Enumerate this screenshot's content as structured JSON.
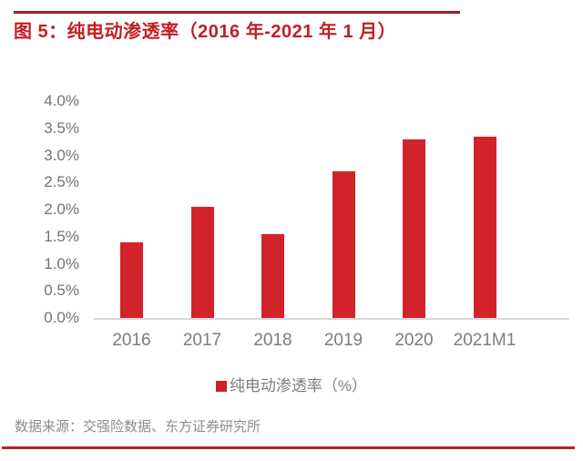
{
  "header": {
    "title": "图 5：纯电动渗透率（2016 年-2021 年 1 月）"
  },
  "chart_data": {
    "type": "bar",
    "title": "图 5：纯电动渗透率（2016 年-2021 年 1 月）",
    "categories": [
      "2016",
      "2017",
      "2018",
      "2019",
      "2020",
      "2021M1"
    ],
    "values": [
      1.4,
      2.05,
      1.55,
      2.7,
      3.3,
      3.35
    ],
    "unit": "%",
    "xlabel": "",
    "ylabel": "",
    "ylim": [
      0,
      4.0
    ],
    "ytick_step": 0.5,
    "yticks": [
      "4.0%",
      "3.5%",
      "3.0%",
      "2.5%",
      "2.0%",
      "1.5%",
      "1.0%",
      "0.5%",
      "0.0%"
    ],
    "legend": "纯电动渗透率（%）",
    "legend_position": "bottom",
    "grid": false,
    "bar_color": "#D2232A"
  },
  "footer": {
    "source": "数据来源：交强险数据、东方证券研究所"
  },
  "colors": {
    "title_red": "#C21E22",
    "bar_red": "#D2232A",
    "legend_swatch_red": "#CD2127",
    "top_rule_red": "#9D2126",
    "bottom_rule_red": "#B2242A",
    "axis_line_gray": "#D8D8D8",
    "ytick_text_gray": "#737373",
    "xtick_text_gray": "#7C7C7C",
    "legend_text_gray": "#7F7F7F",
    "source_text_gray": "#8C8C8C"
  }
}
